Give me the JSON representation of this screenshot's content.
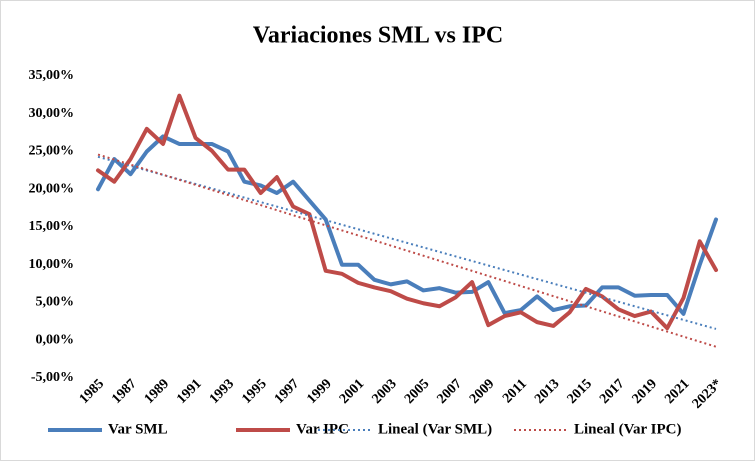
{
  "chart_data": {
    "type": "line",
    "title": "Variaciones SML vs IPC",
    "categories": [
      "1985",
      null,
      "1987",
      null,
      "1989",
      null,
      "1991",
      null,
      "1993",
      null,
      "1995",
      null,
      "1997",
      null,
      "1999",
      null,
      "2001",
      null,
      "2003",
      null,
      "2005",
      null,
      "2007",
      null,
      "2009",
      null,
      "2011",
      null,
      "2013",
      null,
      "2015",
      null,
      "2017",
      null,
      "2019",
      null,
      "2021",
      null,
      "2023*"
    ],
    "series": [
      {
        "name": "Var SML",
        "color": "#4a7ebb",
        "style": "solid",
        "values": [
          20,
          24,
          22,
          25,
          27,
          26,
          26,
          26,
          25,
          21,
          20.5,
          19.5,
          21,
          18.5,
          16,
          10,
          10,
          8,
          7.4,
          7.8,
          6.6,
          6.9,
          6.3,
          6.4,
          7.7,
          3.6,
          4,
          5.8,
          4,
          4.5,
          4.6,
          7,
          7,
          5.9,
          6,
          6,
          3.5,
          10,
          16
        ]
      },
      {
        "name": "Var IPC",
        "color": "#be4b48",
        "style": "solid",
        "values": [
          22.5,
          21,
          24,
          28,
          26,
          32.4,
          26.8,
          25.1,
          22.6,
          22.6,
          19.5,
          21.6,
          17.7,
          16.7,
          9.2,
          8.8,
          7.6,
          7,
          6.5,
          5.5,
          4.9,
          4.5,
          5.7,
          7.7,
          2,
          3.2,
          3.7,
          2.4,
          1.9,
          3.7,
          6.8,
          5.8,
          4.1,
          3.2,
          3.8,
          1.6,
          5.6,
          13.1,
          9.3
        ]
      },
      {
        "name": "Lineal (Var SML)",
        "color": "#4a7ebb",
        "style": "dotted",
        "values": [
          24.3,
          23.7,
          23.1,
          22.5,
          21.9,
          21.3,
          20.7,
          20.1,
          19.5,
          18.9,
          18.3,
          17.7,
          17.1,
          16.5,
          15.9,
          15.3,
          14.7,
          14.1,
          13.5,
          12.9,
          12.3,
          11.7,
          11.1,
          10.5,
          9.9,
          9.3,
          8.7,
          8.1,
          7.5,
          6.9,
          6.3,
          5.7,
          5.1,
          4.5,
          3.9,
          3.3,
          2.7,
          2.1,
          1.5
        ]
      },
      {
        "name": "Lineal (Var IPC)",
        "color": "#be4b48",
        "style": "dotted",
        "values": [
          24.6,
          23.93,
          23.26,
          22.59,
          21.92,
          21.25,
          20.58,
          19.91,
          19.24,
          18.57,
          17.9,
          17.23,
          16.56,
          15.89,
          15.22,
          14.55,
          13.88,
          13.21,
          12.54,
          11.87,
          11.2,
          10.53,
          9.86,
          9.19,
          8.52,
          7.85,
          7.18,
          6.51,
          5.84,
          5.17,
          4.5,
          3.83,
          3.16,
          2.49,
          1.82,
          1.15,
          0.48,
          -0.19,
          -0.86
        ]
      }
    ],
    "ylim": [
      -5,
      35
    ],
    "yticks": [
      {
        "value": -5,
        "label": "-5,00%"
      },
      {
        "value": 0,
        "label": "0,00%"
      },
      {
        "value": 5,
        "label": "5,00%"
      },
      {
        "value": 10,
        "label": "10,00%"
      },
      {
        "value": 15,
        "label": "15,00%"
      },
      {
        "value": 20,
        "label": "20,00%"
      },
      {
        "value": 25,
        "label": "25,00%"
      },
      {
        "value": 30,
        "label": "30,00%"
      },
      {
        "value": 35,
        "label": "35,00%"
      }
    ],
    "grid": false,
    "legend": "bottom"
  }
}
